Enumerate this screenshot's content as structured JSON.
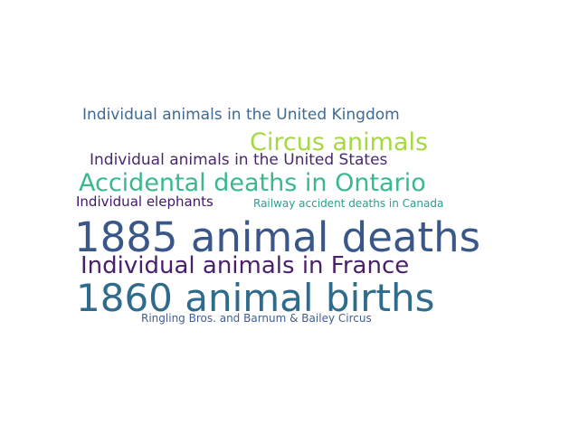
{
  "words": [
    {
      "text": "Individual animals in the United Kingdom",
      "color": "#3e6a93"
    },
    {
      "text": "Circus animals",
      "color": "#a5d843"
    },
    {
      "text": "Individual animals in the United States",
      "color": "#482a6a"
    },
    {
      "text": "Accidental deaths in Ontario",
      "color": "#3bb98a"
    },
    {
      "text": "Individual elephants",
      "color": "#43166a"
    },
    {
      "text": "Railway accident deaths in Canada",
      "color": "#2c9e8d"
    },
    {
      "text": "1885 animal deaths",
      "color": "#3a578a"
    },
    {
      "text": "Individual animals in France",
      "color": "#4a1f6b"
    },
    {
      "text": "1860 animal births",
      "color": "#2f6b8d"
    },
    {
      "text": "Ringling Bros. and Barnum & Bailey Circus",
      "color": "#3f5f94"
    }
  ]
}
